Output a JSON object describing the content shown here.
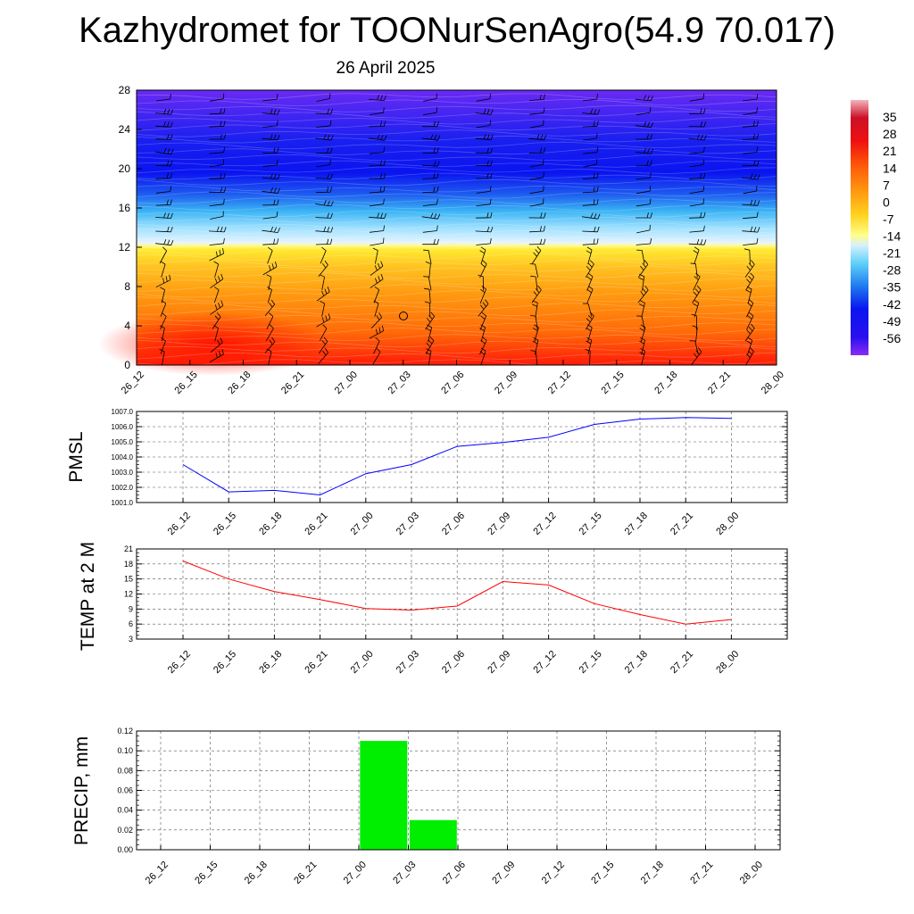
{
  "title": "Kazhydromet for TOONurSenAgro(54.9 70.017)",
  "subtitle": "26 April 2025",
  "colors": {
    "pmsl_line": "#0000ff",
    "temp_line": "#ff0000",
    "precip_bar": "#00ee00",
    "frame": "#000000",
    "grid": "#555555"
  },
  "chart_data": [
    {
      "type": "heatmap",
      "title": "",
      "ylim": [
        0,
        28
      ],
      "yticks": [
        "0",
        "4",
        "8",
        "12",
        "16",
        "20",
        "24",
        "28"
      ],
      "categories": [
        "26_12",
        "26_15",
        "26_18",
        "26_21",
        "27_00",
        "27_03",
        "27_06",
        "27_09",
        "27_12",
        "27_15",
        "27_18",
        "27_21",
        "28_00"
      ],
      "colorbar": {
        "labels": [
          "35",
          "28",
          "21",
          "14",
          "7",
          "0",
          "-7",
          "-14",
          "-21",
          "-28",
          "-35",
          "-42",
          "-49",
          "-56"
        ],
        "range": [
          -63,
          42
        ]
      },
      "wind_barbs": true
    },
    {
      "type": "line",
      "ylabel": "PMSL",
      "ylim": [
        1001.0,
        1007.0
      ],
      "yticks": [
        "1001.0",
        "1002.0",
        "1003.0",
        "1004.0",
        "1005.0",
        "1006.0",
        "1007.0"
      ],
      "categories": [
        "26_12",
        "26_15",
        "26_18",
        "26_21",
        "27_00",
        "27_03",
        "27_06",
        "27_09",
        "27_12",
        "27_15",
        "27_18",
        "27_21",
        "28_00"
      ],
      "values": [
        1003.5,
        1001.7,
        1001.8,
        1001.5,
        1002.9,
        1003.5,
        1004.7,
        1004.95,
        1005.3,
        1006.15,
        1006.5,
        1006.6,
        1006.55
      ],
      "grid": true
    },
    {
      "type": "line",
      "ylabel": "TEMP at 2 M",
      "ylim": [
        3,
        21
      ],
      "yticks": [
        "3",
        "6",
        "9",
        "12",
        "15",
        "18",
        "21"
      ],
      "categories": [
        "26_12",
        "26_15",
        "26_18",
        "26_21",
        "27_00",
        "27_03",
        "27_06",
        "27_09",
        "27_12",
        "27_15",
        "27_18",
        "27_21",
        "28_00"
      ],
      "values": [
        18.6,
        15.0,
        12.5,
        10.9,
        9.1,
        8.8,
        9.6,
        14.5,
        13.8,
        10.1,
        7.9,
        6.0,
        6.9
      ],
      "grid": true
    },
    {
      "type": "bar",
      "ylabel": "PRECIP, mm",
      "ylim": [
        0.0,
        0.12
      ],
      "yticks": [
        "0.00",
        "0.02",
        "0.04",
        "0.06",
        "0.08",
        "0.10",
        "0.12"
      ],
      "categories": [
        "26_12",
        "26_15",
        "26_18",
        "26_21",
        "27_00",
        "27_03",
        "27_06",
        "27_09",
        "27_12",
        "27_15",
        "27_18",
        "27_21",
        "28_00"
      ],
      "values": [
        0,
        0,
        0,
        0,
        0,
        0.11,
        0.03,
        0,
        0,
        0,
        0,
        0,
        0
      ],
      "grid": true
    }
  ]
}
